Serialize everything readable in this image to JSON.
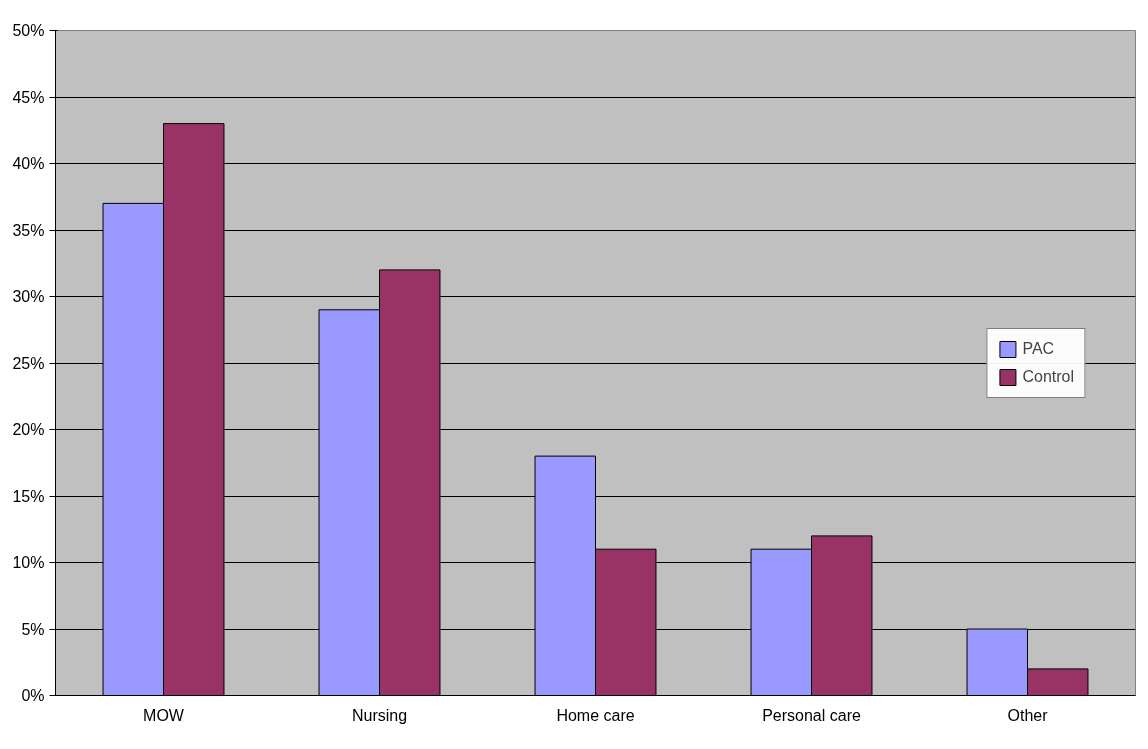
{
  "chart_data": {
    "type": "bar",
    "categories": [
      "MOW",
      "Nursing",
      "Home care",
      "Personal care",
      "Other"
    ],
    "series": [
      {
        "name": "PAC",
        "color": "#9999ff",
        "values": [
          37,
          29,
          18,
          11,
          5
        ]
      },
      {
        "name": "Control",
        "color": "#993366",
        "values": [
          43,
          32,
          11,
          12,
          2
        ]
      }
    ],
    "ylim": [
      0,
      50
    ],
    "yticks": [
      {
        "value": 0,
        "label": "0%"
      },
      {
        "value": 5,
        "label": "5%"
      },
      {
        "value": 10,
        "label": "10%"
      },
      {
        "value": 15,
        "label": "15%"
      },
      {
        "value": 20,
        "label": "20%"
      },
      {
        "value": 25,
        "label": "25%"
      },
      {
        "value": 30,
        "label": "30%"
      },
      {
        "value": 35,
        "label": "35%"
      },
      {
        "value": 40,
        "label": "40%"
      },
      {
        "value": 45,
        "label": "45%"
      },
      {
        "value": 50,
        "label": "50%"
      }
    ],
    "grid": "y",
    "legend": "right"
  }
}
